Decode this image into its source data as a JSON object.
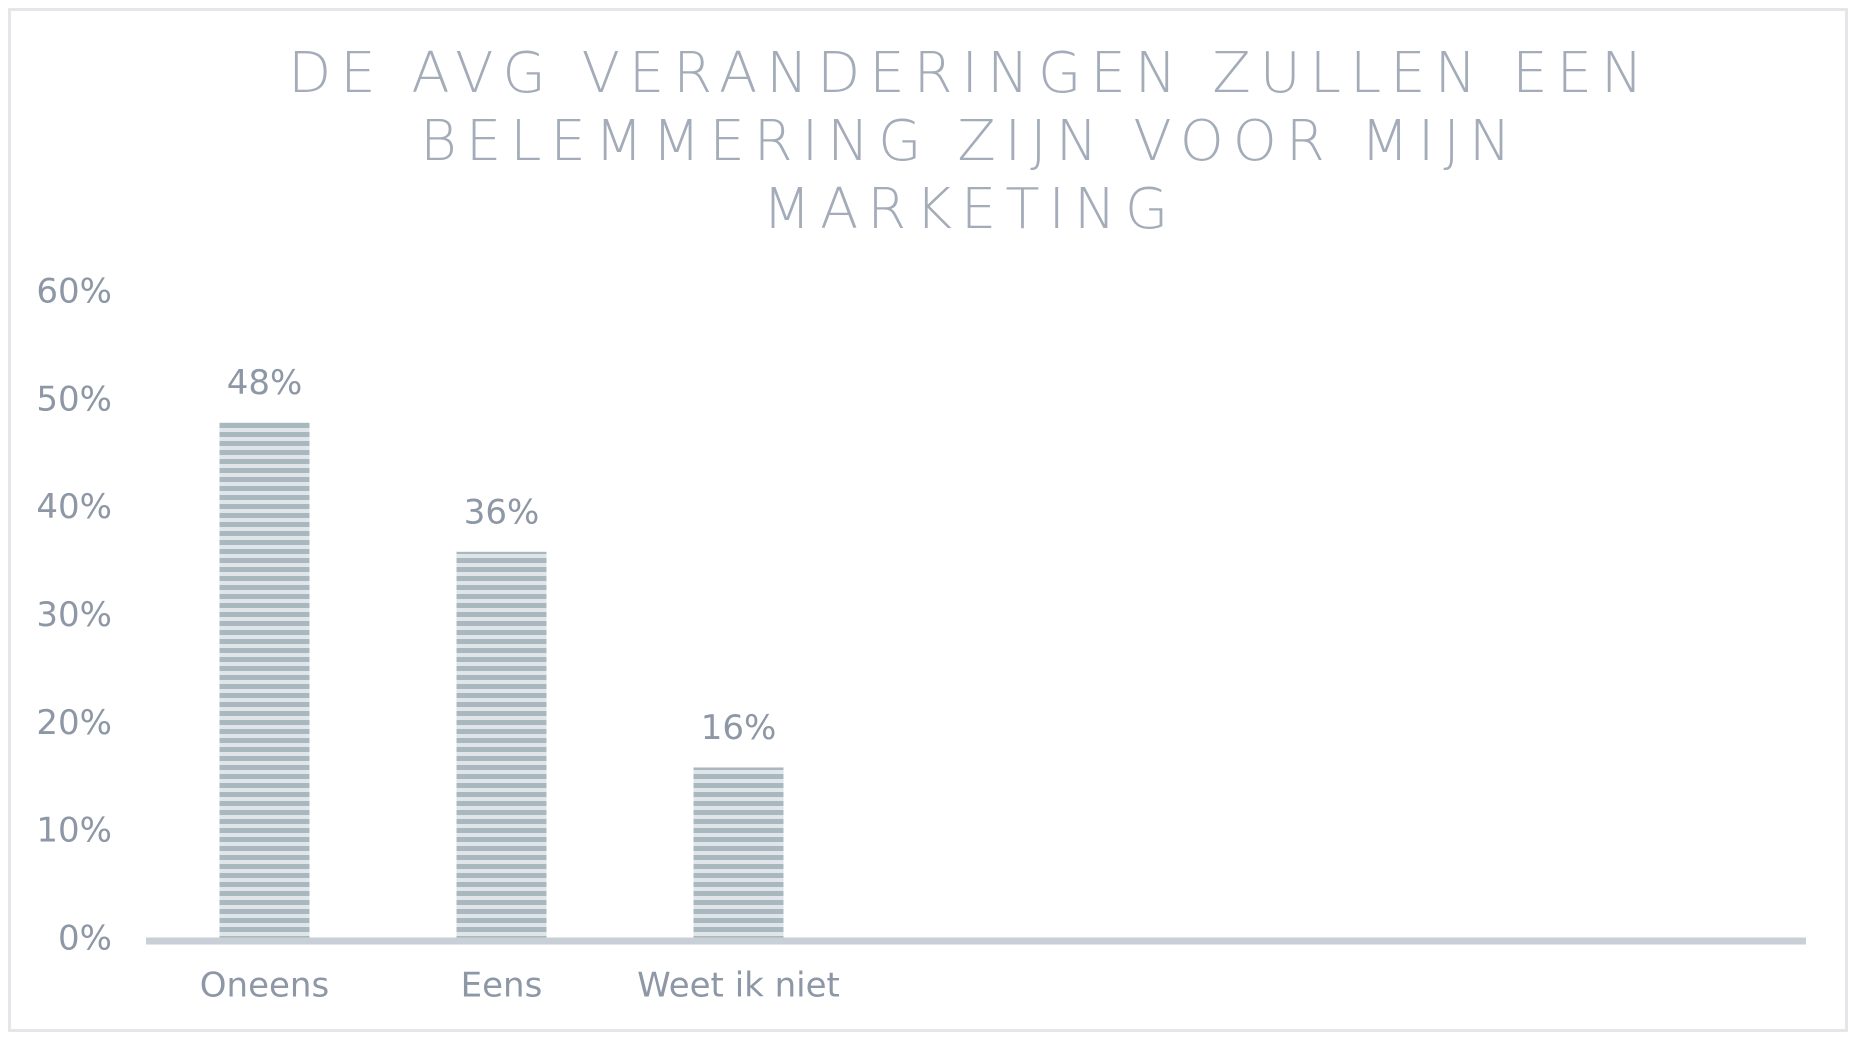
{
  "chart_data": {
    "type": "bar",
    "title": "DE AVG VERANDERINGEN ZULLEN EEN BELEMMERING ZIJN VOOR MIJN MARKETING",
    "categories": [
      "Oneens",
      "Eens",
      "Weet ik niet"
    ],
    "values": [
      48,
      36,
      16
    ],
    "value_labels": [
      "48%",
      "36%",
      "16%"
    ],
    "color": "#a9b8bf",
    "ylim": [
      0,
      60
    ],
    "yticks": [
      {
        "value": 0,
        "label": "0%"
      },
      {
        "value": 10,
        "label": "10%"
      },
      {
        "value": 20,
        "label": "20%"
      },
      {
        "value": 30,
        "label": "30%"
      },
      {
        "value": 40,
        "label": "40%"
      },
      {
        "value": 50,
        "label": "50%"
      },
      {
        "value": 60,
        "label": "60%"
      }
    ],
    "grid": false
  }
}
